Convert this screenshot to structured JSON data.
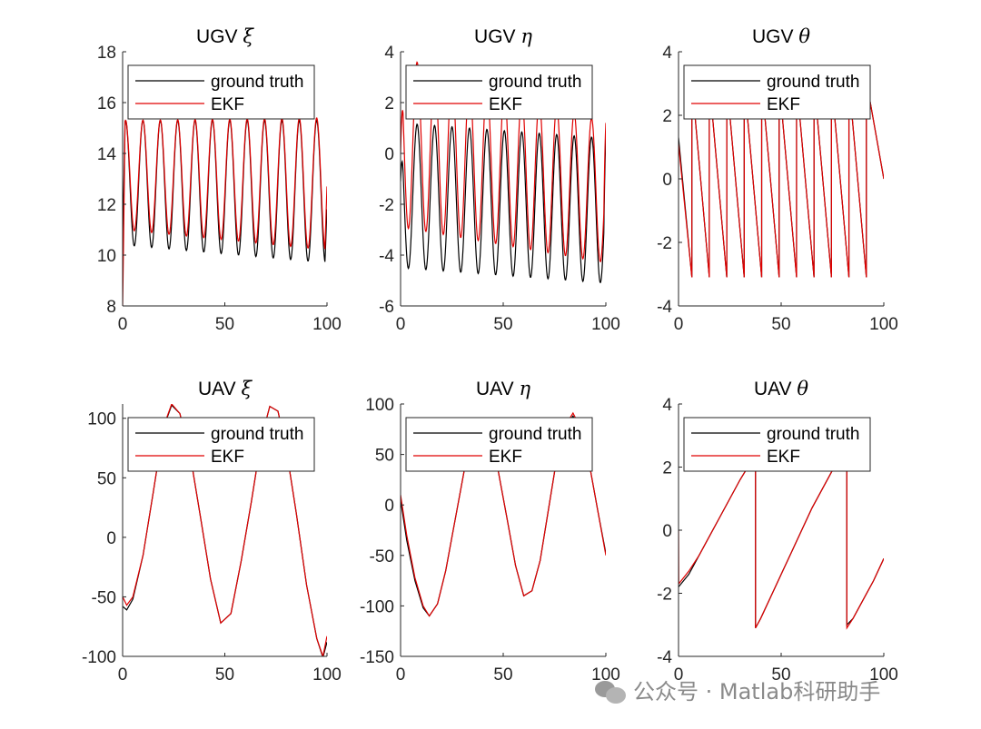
{
  "watermark": {
    "text": "公众号 · Matlab科研助手",
    "icon": "wechat-icon"
  },
  "colors": {
    "ground_truth": "#000000",
    "ekf": "#e00000",
    "axis": "#262626"
  },
  "chart_data": [
    {
      "type": "line",
      "title": "UGV ",
      "title_symbol": "ξ",
      "xlim": [
        0,
        100
      ],
      "ylim": [
        8,
        18
      ],
      "xticks": [
        0,
        50,
        100
      ],
      "yticks": [
        8,
        10,
        12,
        14,
        16,
        18
      ],
      "legend": {
        "placement": "top",
        "entries": [
          "ground truth",
          "EKF"
        ]
      },
      "series": [
        {
          "name": "ground truth",
          "kind": "sin",
          "period": 8.5,
          "phase": 0.5,
          "min_start": 10.4,
          "min_end": 9.7,
          "max_start": 15.3,
          "max_end": 15.3,
          "start": 10.7,
          "end": 11.8
        },
        {
          "name": "EKF",
          "kind": "sin",
          "period": 8.5,
          "phase": 0.5,
          "min_start": 11.0,
          "min_end": 10.2,
          "max_start": 15.3,
          "max_end": 15.4,
          "start": 8.0,
          "end": 12.7
        }
      ]
    },
    {
      "type": "line",
      "title": "UGV ",
      "title_symbol": "η",
      "xlim": [
        0,
        100
      ],
      "ylim": [
        -6,
        4
      ],
      "xticks": [
        0,
        50,
        100
      ],
      "yticks": [
        -6,
        -4,
        -2,
        0,
        2,
        4
      ],
      "legend": {
        "placement": "top",
        "entries": [
          "ground truth",
          "EKF"
        ]
      },
      "series": [
        {
          "name": "ground truth",
          "kind": "sin",
          "period": 8.5,
          "phase": 1.9,
          "min_start": -4.5,
          "min_end": -5.1,
          "max_start": 1.2,
          "max_end": 0.6,
          "start": -1.1,
          "end": 0.6
        },
        {
          "name": "EKF",
          "kind": "sin",
          "period": 8.5,
          "phase": 1.9,
          "min_start": -2.9,
          "min_end": -4.3,
          "max_start": 3.8,
          "max_end": 1.2,
          "start": 0.0,
          "end": 1.2
        }
      ]
    },
    {
      "type": "line",
      "title": "UGV ",
      "title_symbol": "θ",
      "xlim": [
        0,
        100
      ],
      "ylim": [
        -4,
        4
      ],
      "xticks": [
        0,
        50,
        100
      ],
      "yticks": [
        -4,
        -2,
        0,
        2,
        4
      ],
      "legend": {
        "placement": "top",
        "entries": [
          "ground truth",
          "EKF"
        ]
      },
      "series": [
        {
          "name": "ground truth",
          "kind": "saw",
          "start": 1.3,
          "low": -3.1,
          "high": 3.1,
          "jumps": [
            6.5,
            15,
            23.5,
            32,
            40.5,
            49,
            57.5,
            66,
            74.5,
            83,
            91.5
          ],
          "end": 0.0
        },
        {
          "name": "EKF",
          "kind": "saw",
          "start": 1.1,
          "low": -3.1,
          "high": 3.1,
          "jumps": [
            6.5,
            15,
            23.5,
            32,
            40.5,
            49,
            57.5,
            66,
            74.5,
            83,
            91.5
          ],
          "end": 0.0
        }
      ]
    },
    {
      "type": "line",
      "title": "UAV ",
      "title_symbol": "ξ",
      "xlim": [
        0,
        100
      ],
      "ylim": [
        -100,
        112
      ],
      "xticks": [
        0,
        50,
        100
      ],
      "yticks": [
        -100,
        -50,
        0,
        50,
        100
      ],
      "legend": {
        "placement": "top",
        "entries": [
          "ground truth",
          "EKF"
        ]
      },
      "series": [
        {
          "name": "ground truth",
          "kind": "points",
          "x": [
            0,
            2,
            5,
            10,
            15,
            20,
            24,
            28,
            33,
            38,
            43,
            48,
            53,
            58,
            63,
            68,
            72,
            76,
            80,
            85,
            90,
            95,
            98,
            100
          ],
          "y": [
            -58,
            -61,
            -52,
            -15,
            38,
            92,
            111,
            104,
            70,
            18,
            -35,
            -72,
            -64,
            -20,
            30,
            84,
            110,
            106,
            75,
            20,
            -40,
            -85,
            -101,
            -88
          ]
        },
        {
          "name": "EKF",
          "kind": "points",
          "x": [
            0,
            2,
            5,
            10,
            15,
            20,
            24,
            28,
            33,
            38,
            43,
            48,
            53,
            58,
            63,
            68,
            72,
            76,
            80,
            85,
            90,
            95,
            98,
            100
          ],
          "y": [
            -50,
            -57,
            -50,
            -15,
            38,
            93,
            112,
            104,
            70,
            18,
            -35,
            -72,
            -64,
            -20,
            30,
            84,
            110,
            106,
            75,
            20,
            -40,
            -85,
            -100,
            -83
          ]
        }
      ]
    },
    {
      "type": "line",
      "title": "UAV ",
      "title_symbol": "η",
      "xlim": [
        0,
        100
      ],
      "ylim": [
        -150,
        100
      ],
      "xticks": [
        0,
        50,
        100
      ],
      "yticks": [
        -150,
        -100,
        -50,
        0,
        50,
        100
      ],
      "legend": {
        "placement": "top",
        "entries": [
          "ground truth",
          "EKF"
        ]
      },
      "series": [
        {
          "name": "ground truth",
          "kind": "points",
          "x": [
            0,
            3,
            7,
            11,
            14,
            18,
            22,
            27,
            32,
            37,
            42,
            47,
            52,
            56,
            60,
            64,
            68,
            72,
            76,
            80,
            84,
            88,
            92,
            96,
            100
          ],
          "y": [
            5,
            -35,
            -75,
            -102,
            -110,
            -98,
            -65,
            -10,
            45,
            80,
            77,
            40,
            -15,
            -60,
            -90,
            -85,
            -55,
            -5,
            45,
            78,
            88,
            75,
            40,
            -5,
            -48
          ]
        },
        {
          "name": "EKF",
          "kind": "points",
          "x": [
            0,
            3,
            7,
            11,
            14,
            18,
            22,
            27,
            32,
            37,
            42,
            47,
            52,
            56,
            60,
            64,
            68,
            72,
            76,
            80,
            84,
            88,
            92,
            96,
            100
          ],
          "y": [
            10,
            -30,
            -72,
            -100,
            -110,
            -98,
            -65,
            -10,
            45,
            80,
            77,
            40,
            -15,
            -60,
            -90,
            -85,
            -55,
            -5,
            45,
            78,
            91,
            75,
            40,
            -5,
            -50
          ]
        }
      ]
    },
    {
      "type": "line",
      "title": "UAV ",
      "title_symbol": "θ",
      "xlim": [
        0,
        100
      ],
      "ylim": [
        -4,
        4
      ],
      "xticks": [
        0,
        50,
        100
      ],
      "yticks": [
        -4,
        -2,
        0,
        2,
        4
      ],
      "legend": {
        "placement": "top",
        "entries": [
          "ground truth",
          "EKF"
        ]
      },
      "series": [
        {
          "name": "ground truth",
          "kind": "points",
          "x": [
            0,
            5,
            10,
            15,
            20,
            25,
            30,
            37.5,
            37.5,
            40,
            45,
            50,
            55,
            60,
            65,
            70,
            75,
            82,
            82,
            85,
            90,
            95,
            100
          ],
          "y": [
            -1.8,
            -1.4,
            -0.8,
            -0.2,
            0.4,
            1.0,
            1.6,
            2.4,
            -3.1,
            -2.8,
            -2.1,
            -1.4,
            -0.7,
            0.0,
            0.7,
            1.3,
            1.9,
            2.6,
            -3.0,
            -2.8,
            -2.2,
            -1.6,
            -0.9
          ]
        },
        {
          "name": "EKF",
          "kind": "points",
          "x": [
            0,
            0.1,
            5,
            10,
            15,
            20,
            25,
            30,
            37.5,
            37.5,
            40,
            45,
            50,
            55,
            60,
            65,
            70,
            75,
            82,
            82,
            85,
            90,
            95,
            100
          ],
          "y": [
            0.0,
            -1.7,
            -1.3,
            -0.8,
            -0.2,
            0.4,
            1.0,
            1.6,
            2.4,
            -3.1,
            -2.8,
            -2.1,
            -1.4,
            -0.7,
            0.0,
            0.7,
            1.3,
            1.9,
            2.6,
            -3.1,
            -2.8,
            -2.2,
            -1.6,
            -0.9
          ]
        }
      ]
    }
  ]
}
